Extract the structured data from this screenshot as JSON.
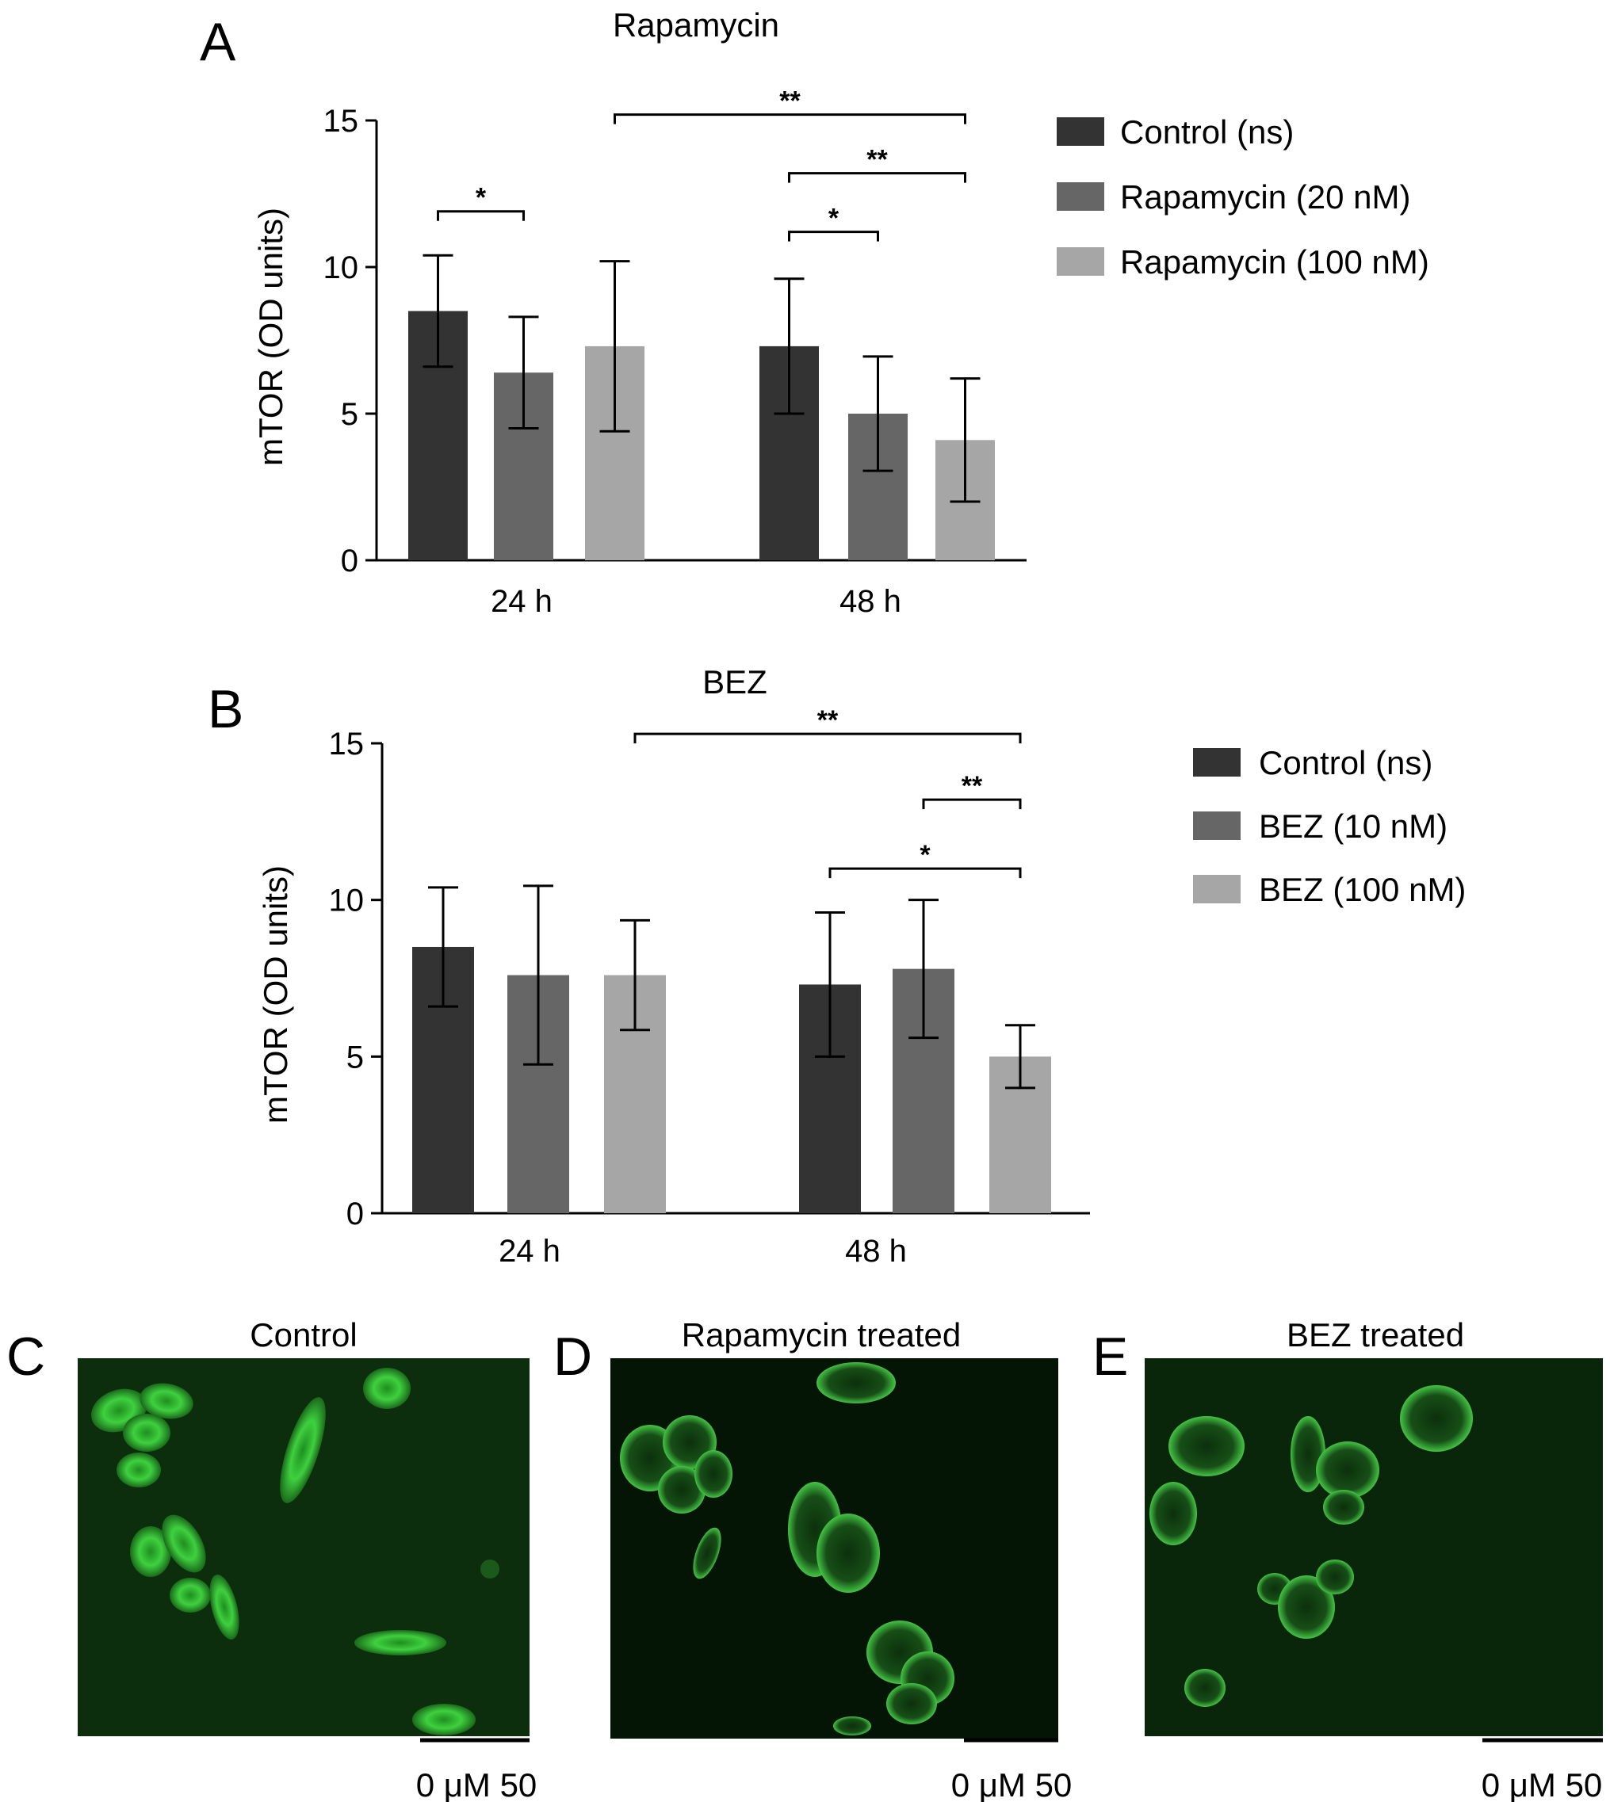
{
  "panel_a": {
    "letter": "A",
    "chart_data": {
      "type": "bar",
      "title": "Rapamycin",
      "ylabel": "mTOR (OD units)",
      "xlabel": "",
      "ylim": [
        0,
        15
      ],
      "yticks": [
        "0",
        "5",
        "10",
        "15"
      ],
      "categories": [
        "24 h",
        "48 h"
      ],
      "series": [
        {
          "name": "Control (ns)",
          "color": "#333333",
          "values": [
            8.5,
            7.3
          ],
          "errors": [
            1.9,
            2.3
          ]
        },
        {
          "name": "Rapamycin (20 nM)",
          "color": "#666666",
          "values": [
            6.4,
            5.0
          ],
          "errors": [
            1.9,
            1.95
          ]
        },
        {
          "name": "Rapamycin (100 nM)",
          "color": "#a6a6a6",
          "values": [
            7.3,
            4.1
          ],
          "errors": [
            2.9,
            2.1
          ]
        }
      ],
      "significance": [
        {
          "label": "*",
          "from": [
            0,
            0
          ],
          "to": [
            0,
            1
          ],
          "y": 11.9
        },
        {
          "label": "**",
          "from": [
            0,
            2
          ],
          "to": [
            1,
            2
          ],
          "y": 15.2
        },
        {
          "label": "**",
          "from": [
            1,
            0
          ],
          "to": [
            1,
            2
          ],
          "y": 13.2
        },
        {
          "label": "*",
          "from": [
            1,
            0
          ],
          "to": [
            1,
            1
          ],
          "y": 11.2
        }
      ],
      "legend_position": "right"
    }
  },
  "panel_b": {
    "letter": "B",
    "chart_data": {
      "type": "bar",
      "title": "BEZ",
      "ylabel": "mTOR (OD units)",
      "xlabel": "",
      "ylim": [
        0,
        15
      ],
      "yticks": [
        "0",
        "5",
        "10",
        "15"
      ],
      "categories": [
        "24 h",
        "48 h"
      ],
      "series": [
        {
          "name": "Control (ns)",
          "color": "#333333",
          "values": [
            8.5,
            7.3
          ],
          "errors": [
            1.9,
            2.3
          ]
        },
        {
          "name": "BEZ (10 nM)",
          "color": "#666666",
          "values": [
            7.6,
            7.8
          ],
          "errors": [
            2.85,
            2.2
          ]
        },
        {
          "name": "BEZ (100 nM)",
          "color": "#a6a6a6",
          "values": [
            7.6,
            5.0
          ],
          "errors": [
            1.75,
            1.0
          ]
        }
      ],
      "significance": [
        {
          "label": "**",
          "from": [
            0,
            2
          ],
          "to": [
            1,
            2
          ],
          "y": 15.3
        },
        {
          "label": "**",
          "from": [
            1,
            1
          ],
          "to": [
            1,
            2
          ],
          "y": 13.2
        },
        {
          "label": "*",
          "from": [
            1,
            0
          ],
          "to": [
            1,
            2
          ],
          "y": 11.0
        }
      ],
      "legend_position": "right"
    }
  },
  "images": [
    {
      "letter": "C",
      "title": "Control",
      "scale_label": "0 μM 50"
    },
    {
      "letter": "D",
      "title": "Rapamycin treated",
      "scale_label": "0 μM 50"
    },
    {
      "letter": "E",
      "title": "BEZ treated",
      "scale_label": "0 μM 50"
    }
  ]
}
